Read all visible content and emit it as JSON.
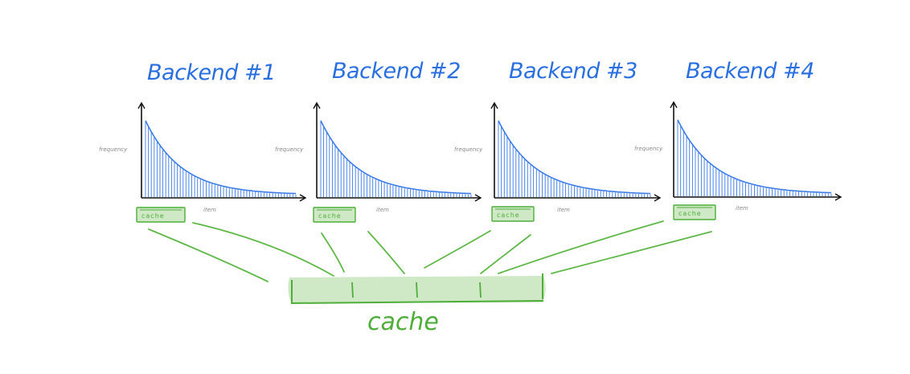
{
  "backends": [
    {
      "title": "Backend #1",
      "ylabel": "frequency",
      "xlabel": "item",
      "cache_label": "cache"
    },
    {
      "title": "Backend #2",
      "ylabel": "frequency",
      "xlabel": "item",
      "cache_label": "cache"
    },
    {
      "title": "Backend #3",
      "ylabel": "frequency",
      "xlabel": "item",
      "cache_label": "cache"
    },
    {
      "title": "Backend #4",
      "ylabel": "frequency",
      "xlabel": "item",
      "cache_label": "cache"
    }
  ],
  "shared_cache": {
    "label": "cache",
    "segments": 4
  },
  "colors": {
    "title": "#2a6fe0",
    "curve": "#3b7be8",
    "axis": "#111111",
    "cache": "#4fae3a",
    "cache_fill": "#cfe8c6",
    "label": "#8a8a8a"
  }
}
